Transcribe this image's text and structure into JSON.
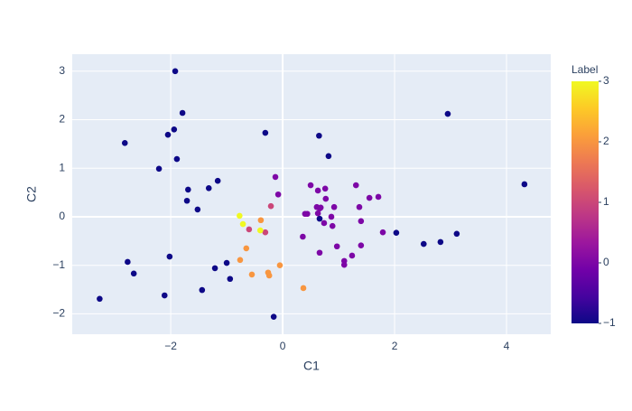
{
  "chart_data": {
    "type": "scatter",
    "x_label": "C1",
    "y_label": "C2",
    "x": [
      -1.92,
      -2.82,
      -1.94,
      -2.05,
      -1.79,
      -2.21,
      -1.89,
      -1.16,
      -1.69,
      -1.71,
      -1.32,
      -1.52,
      -0.31,
      0.65,
      0.82,
      2.95,
      4.32,
      0.66,
      2.03,
      2.52,
      2.82,
      3.11,
      -2.77,
      -2.66,
      -2.02,
      -3.27,
      -2.11,
      -1.21,
      -1.0,
      -0.94,
      -1.44,
      -0.16,
      -0.13,
      -0.08,
      0.5,
      0.63,
      0.76,
      0.77,
      0.61,
      0.66,
      0.63,
      0.44,
      0.4,
      0.68,
      0.92,
      0.74,
      0.87,
      0.89,
      1.31,
      1.37,
      1.55,
      1.71,
      1.4,
      1.79,
      0.36,
      0.66,
      0.97,
      1.4,
      1.24,
      1.1,
      1.1,
      -0.21,
      -0.6,
      -0.31,
      -0.39,
      -0.65,
      -0.76,
      -0.55,
      -0.26,
      -0.24,
      -0.05,
      0.37,
      -0.77,
      -0.71,
      -0.4
    ],
    "y": [
      3.0,
      1.52,
      1.8,
      1.69,
      2.14,
      0.99,
      1.19,
      0.74,
      0.56,
      0.33,
      0.59,
      0.15,
      1.73,
      1.67,
      1.25,
      2.12,
      0.67,
      -0.04,
      -0.33,
      -0.56,
      -0.52,
      -0.35,
      -0.93,
      -1.17,
      -0.82,
      -1.69,
      -1.62,
      -1.06,
      -0.95,
      -1.28,
      -1.51,
      -2.06,
      0.82,
      0.46,
      0.65,
      0.54,
      0.58,
      0.37,
      0.2,
      0.17,
      0.07,
      0.06,
      0.06,
      0.19,
      0.2,
      -0.13,
      0.0,
      -0.19,
      0.65,
      0.2,
      0.39,
      0.41,
      -0.09,
      -0.32,
      -0.41,
      -0.74,
      -0.61,
      -0.59,
      -0.8,
      -0.91,
      -0.99,
      0.22,
      -0.26,
      -0.32,
      -0.07,
      -0.65,
      -0.89,
      -1.19,
      -1.15,
      -1.21,
      -1.0,
      -1.47,
      0.02,
      -0.15,
      -0.28
    ],
    "labels": [
      -1,
      -1,
      -1,
      -1,
      -1,
      -1,
      -1,
      -1,
      -1,
      -1,
      -1,
      -1,
      -1,
      -1,
      -1,
      -1,
      -1,
      -1,
      -1,
      -1,
      -1,
      -1,
      -1,
      -1,
      -1,
      -1,
      -1,
      -1,
      -1,
      -1,
      -1,
      -1,
      0,
      0,
      0,
      0,
      0,
      0,
      0,
      0,
      0,
      0,
      0,
      0,
      0,
      0,
      0,
      0,
      0,
      0,
      0,
      0,
      0,
      0,
      0,
      0,
      0,
      0,
      0,
      0,
      0,
      1,
      1,
      1,
      2,
      2,
      2,
      2,
      2,
      2,
      2,
      2,
      3,
      3,
      3
    ],
    "xlim": [
      -3.76,
      4.79
    ],
    "ylim": [
      -2.42,
      3.35
    ],
    "xticks": [
      {
        "value": -2,
        "label": "−2"
      },
      0,
      2,
      4
    ],
    "yticks": [
      {
        "value": -2,
        "label": "−2"
      },
      {
        "value": -1,
        "label": "−1"
      },
      0,
      1,
      2,
      3
    ],
    "grid": true,
    "colorbar": {
      "title": "Label",
      "clim": [
        -1,
        3
      ],
      "ticks": [
        {
          "value": -1,
          "label": "−1"
        },
        0,
        1,
        2,
        3
      ],
      "colorscale": [
        "#0d0887",
        "#46039f",
        "#7201a8",
        "#9c179e",
        "#bd3786",
        "#d8576b",
        "#ed7953",
        "#fb9f3a",
        "#fdca26",
        "#f0f921"
      ]
    }
  }
}
